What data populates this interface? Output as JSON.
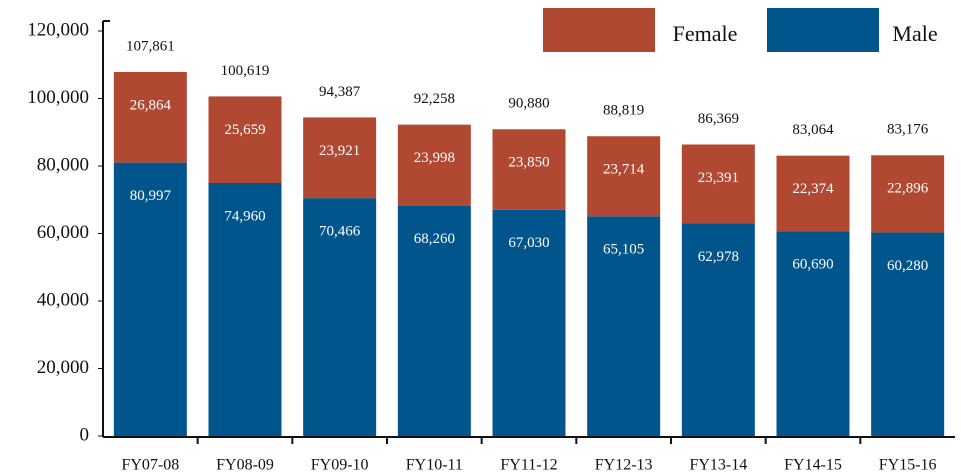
{
  "chart_data": {
    "type": "stacked-bar",
    "categories": [
      "FY07-08",
      "FY08-09",
      "FY09-10",
      "FY10-11",
      "FY11-12",
      "FY12-13",
      "FY13-14",
      "FY14-15",
      "FY15-16"
    ],
    "series": [
      {
        "name": "Male",
        "color": "#00558c",
        "values": [
          80997,
          74960,
          70466,
          68260,
          67030,
          65105,
          62978,
          60690,
          60280
        ],
        "value_labels": [
          "80,997",
          "74,960",
          "70,466",
          "68,260",
          "67,030",
          "65,105",
          "62,978",
          "60,690",
          "60,280"
        ]
      },
      {
        "name": "Female",
        "color": "#b04832",
        "values": [
          26864,
          25659,
          23921,
          23998,
          23850,
          23714,
          23391,
          22374,
          22896
        ],
        "value_labels": [
          "26,864",
          "25,659",
          "23,921",
          "23,998",
          "23,850",
          "23,714",
          "23,391",
          "22,374",
          "22,896"
        ]
      }
    ],
    "totals": {
      "values": [
        107861,
        100619,
        94387,
        92258,
        90880,
        88819,
        86369,
        83064,
        83176
      ],
      "value_labels": [
        "107,861",
        "100,619",
        "94,387",
        "92,258",
        "90,880",
        "88,819",
        "86,369",
        "83,064",
        "83,176"
      ]
    },
    "ylim": [
      0,
      120000
    ],
    "yticks": [
      0,
      {
        "value": 20000,
        "label": "20,000"
      },
      {
        "value": 40000,
        "label": "40,000"
      },
      {
        "value": 60000,
        "label": "60,000"
      },
      {
        "value": 80000,
        "label": "80,000"
      },
      {
        "value": 100000,
        "label": "100,000"
      },
      {
        "value": 120000,
        "label": "120,000"
      }
    ],
    "legend": "top-right"
  }
}
